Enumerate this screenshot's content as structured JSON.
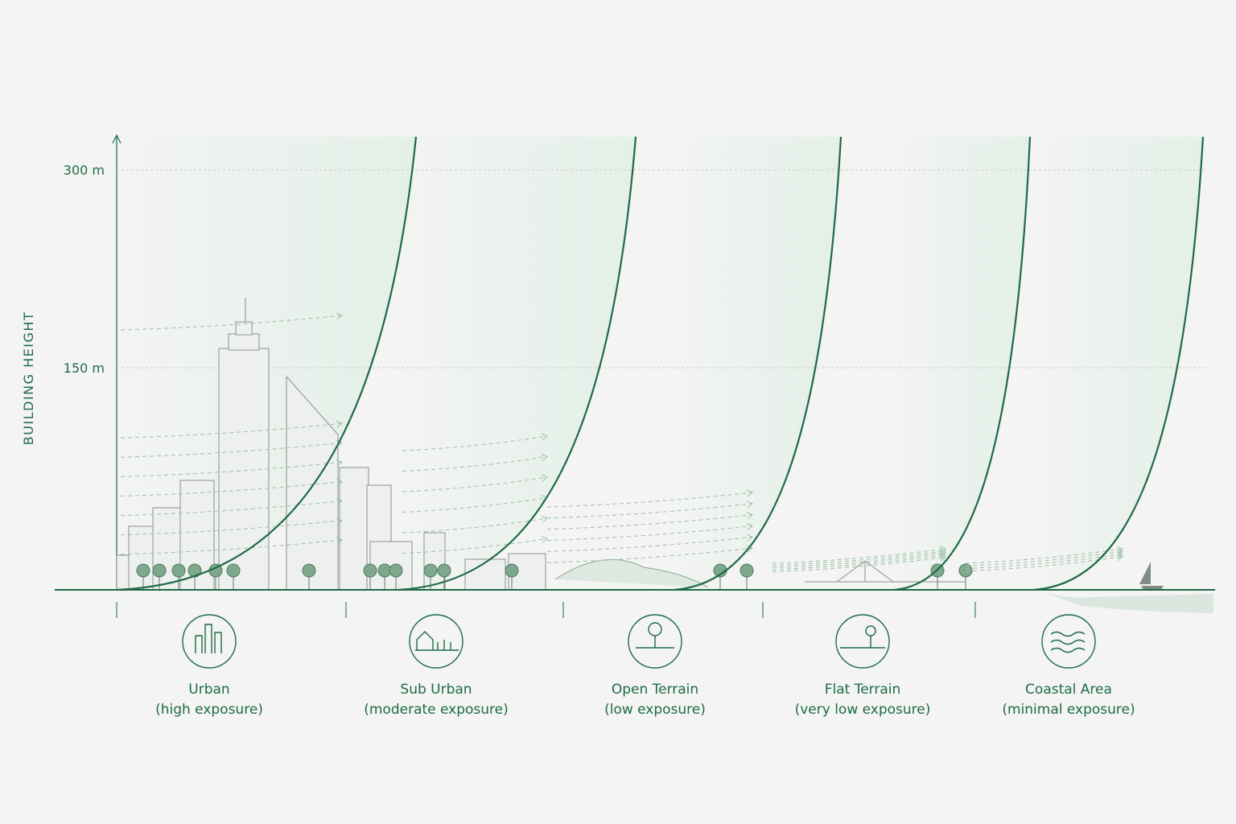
{
  "axis": {
    "label": "BUILDING HEIGHT",
    "ticks": [
      "300 m",
      "150 m"
    ]
  },
  "zones": [
    {
      "name": "Urban",
      "exposure": "(high exposure)"
    },
    {
      "name": "Sub Urban",
      "exposure": "(moderate exposure)"
    },
    {
      "name": "Open Terrain",
      "exposure": "(low exposure)"
    },
    {
      "name": "Flat Terrain",
      "exposure": "(very low exposure)"
    },
    {
      "name": "Coastal Area",
      "exposure": "(minimal exposure)"
    }
  ]
}
